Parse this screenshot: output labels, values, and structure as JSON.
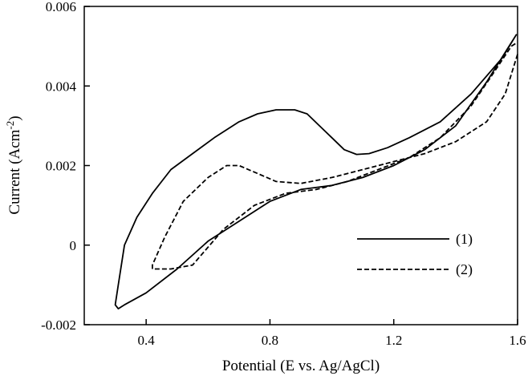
{
  "chart_data": {
    "type": "line",
    "xlabel": "Potential (E vs. Ag/AgCl)",
    "ylabel": "Current (Acm",
    "ylabel_sup": "-2",
    "ylabel_end": ")",
    "xlim": [
      0.2,
      1.6
    ],
    "ylim": [
      -0.002,
      0.006
    ],
    "xticks": [
      {
        "value": 0.4,
        "label": "0.4"
      },
      {
        "value": 0.8,
        "label": "0.8"
      },
      {
        "value": 1.2,
        "label": "1.2"
      },
      {
        "value": 1.6,
        "label": "1.6"
      }
    ],
    "yticks": [
      {
        "value": -0.002,
        "label": "-0.002"
      },
      {
        "value": 0,
        "label": "0"
      },
      {
        "value": 0.002,
        "label": "0.002"
      },
      {
        "value": 0.004,
        "label": "0.004"
      },
      {
        "value": 0.006,
        "label": "0.006"
      }
    ],
    "grid": false,
    "legend_position": "bottom-right",
    "series": [
      {
        "name": "(1)",
        "style": "solid",
        "color": "#000000",
        "points": [
          [
            1.597,
            0.0053
          ],
          [
            1.55,
            0.0047
          ],
          [
            1.45,
            0.0038
          ],
          [
            1.35,
            0.0031
          ],
          [
            1.25,
            0.0027
          ],
          [
            1.18,
            0.00245
          ],
          [
            1.12,
            0.0023
          ],
          [
            1.08,
            0.00228
          ],
          [
            1.04,
            0.0024
          ],
          [
            1.0,
            0.0027
          ],
          [
            0.96,
            0.003
          ],
          [
            0.92,
            0.0033
          ],
          [
            0.88,
            0.0034
          ],
          [
            0.82,
            0.0034
          ],
          [
            0.76,
            0.0033
          ],
          [
            0.7,
            0.0031
          ],
          [
            0.62,
            0.0027
          ],
          [
            0.55,
            0.0023
          ],
          [
            0.48,
            0.0019
          ],
          [
            0.42,
            0.0013
          ],
          [
            0.37,
            0.0007
          ],
          [
            0.33,
            0.0
          ],
          [
            0.31,
            -0.001
          ],
          [
            0.3,
            -0.0015
          ],
          [
            0.31,
            -0.0016
          ],
          [
            0.33,
            -0.0015
          ],
          [
            0.4,
            -0.0012
          ],
          [
            0.5,
            -0.0006
          ],
          [
            0.6,
            0.0001
          ],
          [
            0.7,
            0.0006
          ],
          [
            0.8,
            0.0011
          ],
          [
            0.9,
            0.0014
          ],
          [
            1.0,
            0.0015
          ],
          [
            1.1,
            0.0017
          ],
          [
            1.2,
            0.002
          ],
          [
            1.3,
            0.0024
          ],
          [
            1.4,
            0.003
          ],
          [
            1.5,
            0.0041
          ],
          [
            1.597,
            0.0053
          ]
        ]
      },
      {
        "name": "(2)",
        "style": "dashed",
        "color": "#000000",
        "points": [
          [
            1.6,
            0.0048
          ],
          [
            1.56,
            0.0038
          ],
          [
            1.5,
            0.0031
          ],
          [
            1.4,
            0.0026
          ],
          [
            1.3,
            0.0023
          ],
          [
            1.2,
            0.0021
          ],
          [
            1.1,
            0.0019
          ],
          [
            1.0,
            0.0017
          ],
          [
            0.9,
            0.00155
          ],
          [
            0.82,
            0.0016
          ],
          [
            0.76,
            0.0018
          ],
          [
            0.7,
            0.002
          ],
          [
            0.66,
            0.002
          ],
          [
            0.6,
            0.0017
          ],
          [
            0.52,
            0.0011
          ],
          [
            0.46,
            0.0002
          ],
          [
            0.42,
            -0.0005
          ],
          [
            0.42,
            -0.0006
          ],
          [
            0.48,
            -0.0006
          ],
          [
            0.55,
            -0.0005
          ],
          [
            0.65,
            0.0004
          ],
          [
            0.75,
            0.001
          ],
          [
            0.85,
            0.0013
          ],
          [
            0.95,
            0.0014
          ],
          [
            1.05,
            0.0016
          ],
          [
            1.15,
            0.0019
          ],
          [
            1.25,
            0.0022
          ],
          [
            1.35,
            0.0027
          ],
          [
            1.45,
            0.0035
          ],
          [
            1.52,
            0.0043
          ],
          [
            1.58,
            0.005
          ],
          [
            1.6,
            0.0051
          ]
        ]
      }
    ]
  }
}
